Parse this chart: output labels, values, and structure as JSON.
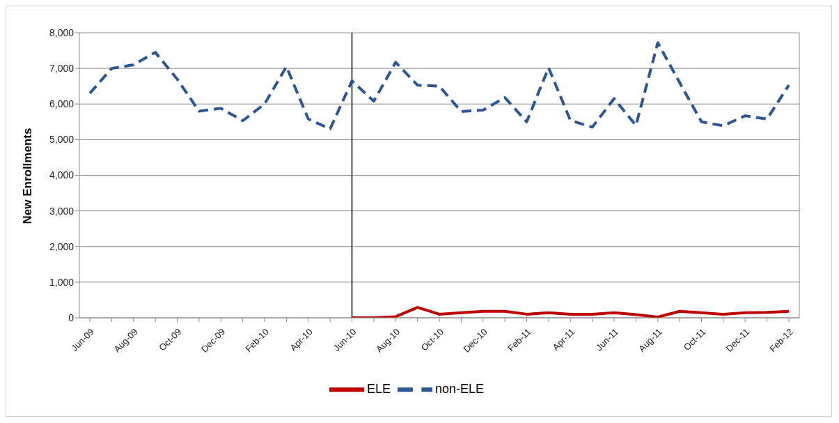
{
  "chart_data": {
    "type": "line",
    "ylabel": "New Enrollments",
    "categories": [
      "Jun-09",
      null,
      "Aug-09",
      null,
      "Oct-09",
      null,
      "Dec-09",
      null,
      "Feb-10",
      null,
      "Apr-10",
      null,
      "Jun-10",
      null,
      "Aug-10",
      null,
      "Oct-10",
      null,
      "Dec-10",
      null,
      "Feb-11",
      null,
      "Apr-11",
      null,
      "Jun-11",
      null,
      "Aug-11",
      null,
      "Oct-11",
      null,
      "Dec-11",
      null,
      "Feb-12"
    ],
    "series": [
      {
        "name": "ELE",
        "color": "#c00000",
        "line_style": "solid",
        "values": [
          null,
          null,
          null,
          null,
          null,
          null,
          null,
          null,
          null,
          null,
          null,
          null,
          0,
          0,
          30,
          290,
          100,
          140,
          180,
          180,
          100,
          140,
          100,
          100,
          140,
          90,
          20,
          180,
          140,
          100,
          140,
          150,
          180
        ]
      },
      {
        "name": "non-ELE",
        "color": "#2e5597",
        "line_style": "dashed",
        "values": [
          6300,
          7000,
          7100,
          7450,
          6700,
          5800,
          5880,
          5530,
          6000,
          7050,
          5580,
          5300,
          6650,
          6080,
          7170,
          6530,
          6500,
          5790,
          5830,
          6180,
          5500,
          7020,
          5540,
          5350,
          6150,
          5400,
          7720,
          6600,
          5500,
          5390,
          5670,
          5580,
          6530
        ]
      }
    ],
    "ylim": [
      0,
      8000
    ],
    "yticks": [
      {
        "value": 0,
        "label": "0"
      },
      {
        "value": 1000,
        "label": "1,000"
      },
      {
        "value": 2000,
        "label": "2,000"
      },
      {
        "value": 3000,
        "label": "3,000"
      },
      {
        "value": 4000,
        "label": "4,000"
      },
      {
        "value": 5000,
        "label": "5,000"
      },
      {
        "value": 6000,
        "label": "6,000"
      },
      {
        "value": 7000,
        "label": "7,000"
      },
      {
        "value": 8000,
        "label": "8,000"
      }
    ],
    "ref_lines": [
      {
        "axis": "x",
        "value": "Jun-10",
        "color": "#000000"
      }
    ],
    "grid": "y",
    "legend": "bottom",
    "marker": "none"
  }
}
